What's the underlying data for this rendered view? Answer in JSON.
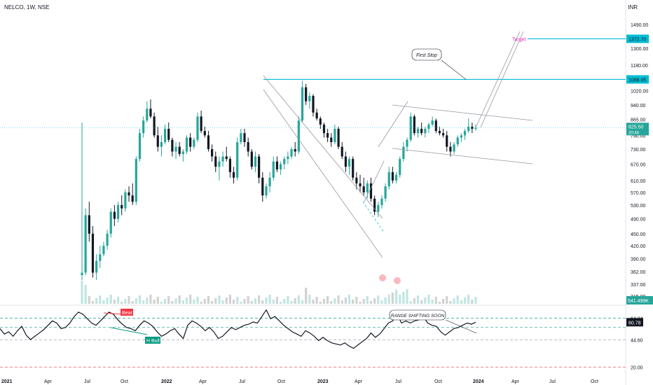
{
  "header": {
    "symbol_line": "NELCO, 1W, NSE",
    "currency": "INR"
  },
  "colors": {
    "up": "#26a69a",
    "down": "#131722",
    "up_fill": "#26a69a",
    "cyan_line": "#00bcd4",
    "target": "#e91ec7",
    "rsi_dash_green": "#089981",
    "rsi_dash_red": "#f23645",
    "volume": "#b2dfdb",
    "volume_down": "#c7c7c7"
  },
  "chart_data": [
    {
      "type": "candlestick",
      "title": "NELCO, 1W, NSE",
      "x_ticks": [
        "2021",
        "Apr",
        "Jul",
        "Oct",
        "2022",
        "Apr",
        "Jul",
        "Oct",
        "2023",
        "Apr",
        "Jul",
        "Oct",
        "2024",
        "Apr",
        "Jul",
        "Oct"
      ],
      "y_ticks": [
        1490.0,
        1300.0,
        1180.0,
        1020.0,
        940.0,
        865.0,
        790.0,
        730.0,
        670.0,
        610.0,
        570.0,
        530.0,
        490.0,
        450.0,
        420.0,
        390.0,
        362.0,
        337.0,
        315.0
      ],
      "y_axis": "log",
      "price_labels": {
        "current": "825.50",
        "current_sub": "20:46",
        "target_level": "1372.70",
        "first_stop_level": "1088.05",
        "volume_label": "541.499K"
      },
      "annotations": [
        "Target",
        "First Stop"
      ],
      "candles": [
        [
          355,
          850,
          345,
          360
        ],
        [
          360,
          520,
          355,
          500
        ],
        [
          500,
          540,
          430,
          450
        ],
        [
          450,
          470,
          350,
          360
        ],
        [
          360,
          400,
          345,
          385
        ],
        [
          385,
          420,
          370,
          400
        ],
        [
          400,
          430,
          395,
          420
        ],
        [
          420,
          460,
          410,
          450
        ],
        [
          450,
          520,
          440,
          510
        ],
        [
          510,
          530,
          470,
          490
        ],
        [
          490,
          540,
          480,
          530
        ],
        [
          530,
          560,
          500,
          520
        ],
        [
          520,
          580,
          510,
          570
        ],
        [
          570,
          590,
          540,
          560
        ],
        [
          560,
          600,
          530,
          540
        ],
        [
          540,
          700,
          530,
          690
        ],
        [
          690,
          820,
          680,
          800
        ],
        [
          800,
          880,
          780,
          860
        ],
        [
          860,
          960,
          850,
          920
        ],
        [
          920,
          970,
          870,
          880
        ],
        [
          880,
          900,
          780,
          790
        ],
        [
          790,
          830,
          720,
          740
        ],
        [
          740,
          790,
          700,
          760
        ],
        [
          760,
          840,
          750,
          820
        ],
        [
          820,
          850,
          760,
          770
        ],
        [
          770,
          780,
          700,
          720
        ],
        [
          720,
          760,
          690,
          740
        ],
        [
          740,
          760,
          700,
          710
        ],
        [
          710,
          730,
          680,
          720
        ],
        [
          720,
          790,
          710,
          780
        ],
        [
          780,
          800,
          720,
          740
        ],
        [
          740,
          780,
          730,
          770
        ],
        [
          770,
          900,
          760,
          880
        ],
        [
          880,
          910,
          800,
          810
        ],
        [
          810,
          830,
          780,
          790
        ],
        [
          790,
          810,
          720,
          730
        ],
        [
          730,
          750,
          680,
          700
        ],
        [
          700,
          720,
          640,
          660
        ],
        [
          660,
          700,
          610,
          680
        ],
        [
          680,
          720,
          660,
          700
        ],
        [
          700,
          740,
          680,
          690
        ],
        [
          690,
          700,
          620,
          640
        ],
        [
          640,
          660,
          600,
          620
        ],
        [
          620,
          780,
          610,
          760
        ],
        [
          760,
          820,
          750,
          800
        ],
        [
          800,
          820,
          740,
          760
        ],
        [
          760,
          780,
          700,
          720
        ],
        [
          720,
          730,
          650,
          660
        ],
        [
          660,
          720,
          640,
          700
        ],
        [
          700,
          710,
          600,
          620
        ],
        [
          620,
          640,
          540,
          560
        ],
        [
          560,
          600,
          550,
          590
        ],
        [
          590,
          640,
          570,
          620
        ],
        [
          620,
          700,
          610,
          680
        ],
        [
          680,
          700,
          640,
          650
        ],
        [
          650,
          680,
          630,
          670
        ],
        [
          670,
          700,
          650,
          690
        ],
        [
          690,
          720,
          670,
          700
        ],
        [
          700,
          740,
          690,
          730
        ],
        [
          730,
          760,
          700,
          720
        ],
        [
          720,
          880,
          710,
          860
        ],
        [
          860,
          1080,
          850,
          1040
        ],
        [
          1040,
          1060,
          940,
          960
        ],
        [
          960,
          1010,
          920,
          990
        ],
        [
          990,
          1000,
          880,
          900
        ],
        [
          900,
          920,
          860,
          870
        ],
        [
          870,
          880,
          820,
          840
        ],
        [
          840,
          850,
          780,
          800
        ],
        [
          800,
          820,
          760,
          780
        ],
        [
          780,
          800,
          740,
          760
        ],
        [
          760,
          840,
          750,
          820
        ],
        [
          820,
          830,
          730,
          740
        ],
        [
          740,
          760,
          690,
          700
        ],
        [
          700,
          720,
          640,
          660
        ],
        [
          660,
          700,
          630,
          690
        ],
        [
          690,
          700,
          610,
          620
        ],
        [
          620,
          640,
          580,
          600
        ],
        [
          600,
          630,
          570,
          590
        ],
        [
          590,
          620,
          560,
          570
        ],
        [
          570,
          610,
          550,
          600
        ],
        [
          600,
          620,
          540,
          550
        ],
        [
          550,
          560,
          500,
          510
        ],
        [
          510,
          540,
          495,
          530
        ],
        [
          530,
          560,
          520,
          550
        ],
        [
          550,
          600,
          540,
          590
        ],
        [
          590,
          660,
          580,
          640
        ],
        [
          640,
          660,
          600,
          610
        ],
        [
          610,
          640,
          600,
          630
        ],
        [
          630,
          700,
          620,
          690
        ],
        [
          690,
          760,
          680,
          740
        ],
        [
          740,
          780,
          720,
          770
        ],
        [
          770,
          900,
          760,
          880
        ],
        [
          880,
          890,
          790,
          800
        ],
        [
          800,
          830,
          780,
          820
        ],
        [
          820,
          850,
          790,
          800
        ],
        [
          800,
          830,
          780,
          820
        ],
        [
          820,
          850,
          800,
          840
        ],
        [
          840,
          880,
          830,
          860
        ],
        [
          860,
          870,
          800,
          810
        ],
        [
          810,
          830,
          790,
          800
        ],
        [
          800,
          820,
          780,
          790
        ],
        [
          790,
          810,
          720,
          740
        ],
        [
          740,
          760,
          700,
          720
        ],
        [
          720,
          760,
          710,
          750
        ],
        [
          750,
          790,
          740,
          780
        ],
        [
          780,
          800,
          760,
          790
        ],
        [
          790,
          820,
          770,
          810
        ],
        [
          810,
          870,
          800,
          830
        ],
        [
          830,
          850,
          800,
          820
        ],
        [
          820,
          840,
          810,
          825.5
        ]
      ]
    },
    {
      "type": "line",
      "title": "RSI",
      "y_ticks": [
        64.34,
        44.6,
        20.0
      ],
      "labels": {
        "current": "60.78",
        "upper_band": "64.34",
        "lower_band": "44.60",
        "extra": "64.34"
      },
      "annotations": [
        "Bear",
        "H Bull",
        "RANGE SHIFTING SOON"
      ],
      "values": [
        55,
        50,
        52,
        48,
        53,
        57,
        49,
        45,
        48,
        51,
        54,
        58,
        62,
        60,
        55,
        56,
        60,
        66,
        70,
        68,
        64,
        60,
        58,
        62,
        66,
        70,
        68,
        63,
        59,
        56,
        55,
        53,
        58,
        62,
        60,
        57,
        52,
        48,
        50,
        53,
        55,
        50,
        46,
        58,
        62,
        60,
        57,
        53,
        56,
        52,
        46,
        48,
        52,
        56,
        54,
        56,
        58,
        59,
        61,
        60,
        66,
        72,
        64,
        66,
        62,
        58,
        55,
        52,
        50,
        48,
        53,
        51,
        48,
        44,
        47,
        44,
        42,
        41,
        40,
        42,
        39,
        37,
        40,
        43,
        46,
        51,
        47,
        50,
        55,
        60,
        62,
        68,
        60,
        62,
        60,
        62,
        63,
        66,
        60,
        58,
        57,
        52,
        49,
        52,
        55,
        56,
        58,
        60,
        59,
        60.78
      ]
    }
  ]
}
